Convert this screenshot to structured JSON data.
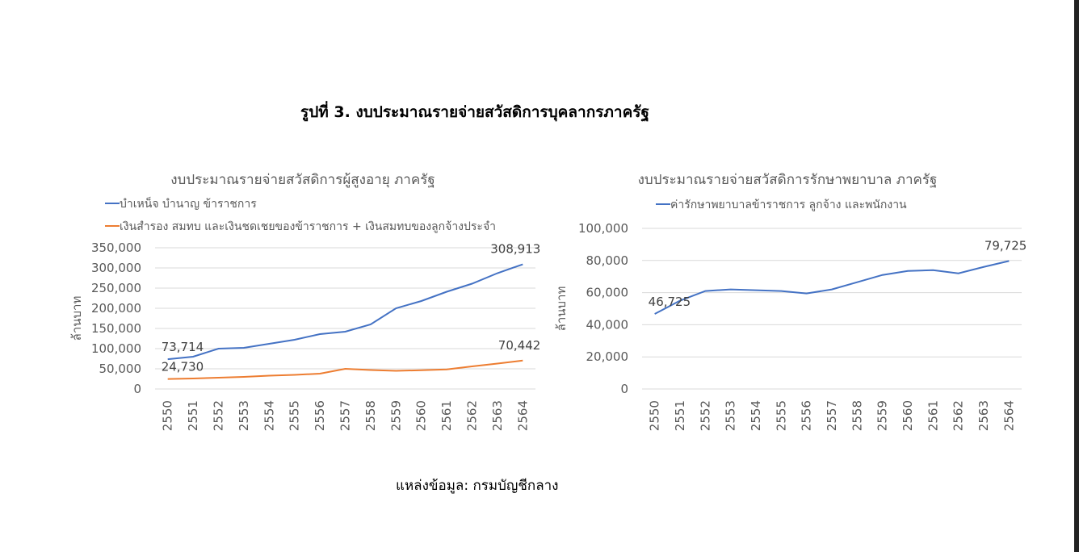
{
  "figure_title": "รูปที่ 3. งบประมาณรายจ่ายสวัสดิการบุคลากรภาครัฐ",
  "source": "แหล่งข้อมูล: กรมบัญชีกลาง",
  "chart_data": [
    {
      "type": "line",
      "title": "งบประมาณรายจ่ายสวัสดิการผู้สูงอายุ ภาครัฐ",
      "ylabel": "ล้านบาท",
      "xlabel": "",
      "ylim": [
        0,
        350000
      ],
      "yticks": [
        "0",
        "50,000",
        "100,000",
        "150,000",
        "200,000",
        "250,000",
        "300,000",
        "350,000"
      ],
      "grid": true,
      "legend": "top-left",
      "categories": [
        "2550",
        "2551",
        "2552",
        "2553",
        "2554",
        "2555",
        "2556",
        "2557",
        "2558",
        "2559",
        "2560",
        "2561",
        "2562",
        "2563",
        "2564"
      ],
      "series": [
        {
          "name": "บำเหน็จ บำนาญ ข้าราชการ",
          "color": "#4472c4",
          "values": [
            73714,
            80000,
            100000,
            102000,
            112000,
            122000,
            136000,
            142000,
            160000,
            200000,
            218000,
            241000,
            261000,
            287000,
            308913
          ],
          "labels": {
            "first": "73,714",
            "last": "308,913"
          }
        },
        {
          "name": "เงินสำรอง สมทบ และเงินชดเชยของข้าราชการ + เงินสมทบของลูกจ้างประจำ",
          "color": "#ed7d31",
          "values": [
            24730,
            26000,
            28000,
            30000,
            33000,
            35000,
            38000,
            50000,
            47000,
            45000,
            46500,
            48500,
            56000,
            63000,
            70442
          ],
          "labels": {
            "first": "24,730",
            "last": "70,442"
          }
        }
      ]
    },
    {
      "type": "line",
      "title": "งบประมาณรายจ่ายสวัสดิการรักษาพยาบาล ภาครัฐ",
      "ylabel": "ล้านบาท",
      "xlabel": "",
      "ylim": [
        0,
        100000
      ],
      "yticks": [
        "0",
        "20,000",
        "40,000",
        "60,000",
        "80,000",
        "100,000"
      ],
      "grid": true,
      "legend": "top",
      "categories": [
        "2550",
        "2551",
        "2552",
        "2553",
        "2554",
        "2555",
        "2556",
        "2557",
        "2558",
        "2559",
        "2560",
        "2561",
        "2562",
        "2563",
        "2564"
      ],
      "series": [
        {
          "name": "ค่ารักษาพยาบาลข้าราชการ ลูกจ้าง และพนักงาน",
          "color": "#4472c4",
          "values": [
            46725,
            55000,
            61000,
            62000,
            61500,
            61000,
            59500,
            62000,
            66500,
            71000,
            73500,
            74000,
            72000,
            76000,
            79725
          ],
          "labels": {
            "first": "46,725",
            "last": "79,725"
          }
        }
      ]
    }
  ]
}
